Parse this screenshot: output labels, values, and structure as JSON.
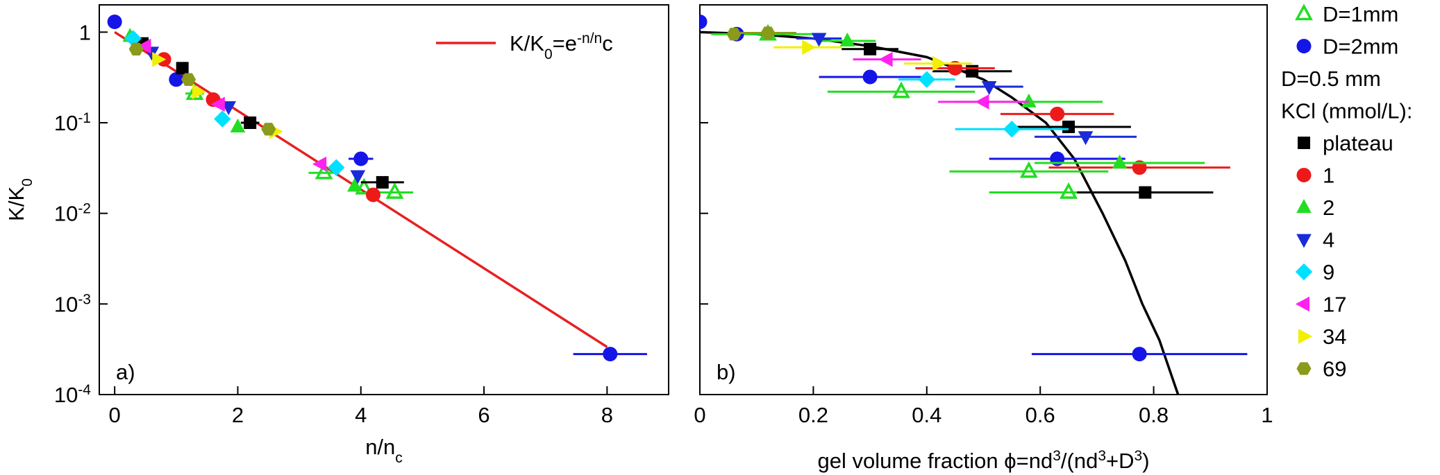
{
  "chart_data": [
    {
      "type": "scatter",
      "panel_label": "a)",
      "ylog": true,
      "xlabel": [
        "n/n",
        "c"
      ],
      "ylabel": [
        "K/K",
        "0"
      ],
      "xlim": [
        -0.25,
        9
      ],
      "xticks": [
        0,
        2,
        4,
        6,
        8
      ],
      "ylim": [
        0.0001,
        2
      ],
      "yticks": [
        {
          "value": 0.0001,
          "label": [
            "10",
            "-4"
          ]
        },
        {
          "value": 0.001,
          "label": [
            "10",
            "-3"
          ]
        },
        {
          "value": 0.01,
          "label": [
            "10",
            "-2"
          ]
        },
        {
          "value": 0.1,
          "label": [
            "10",
            "-1"
          ]
        },
        1
      ],
      "fit": {
        "label": [
          "K/K",
          "0",
          "=e",
          "-n/n",
          "c"
        ],
        "color": "#e82020",
        "x": [
          0,
          8
        ],
        "values": [
          1,
          0.000335
        ]
      },
      "series": [
        {
          "color": "#22dd22",
          "marker": "triangle-up",
          "open": true,
          "x": [
            3.4,
            4.55,
            1.3,
            4.05
          ],
          "values": [
            0.028,
            0.017,
            0.21,
            0.019
          ],
          "xerr": [
            0.25,
            0.3,
            0.15,
            null
          ]
        },
        {
          "color": "#1515e8",
          "marker": "circle",
          "x": [
            0,
            1,
            4,
            8.05
          ],
          "values": [
            1.3,
            0.3,
            0.04,
            0.00028
          ],
          "xerr": [
            null,
            null,
            0.2,
            0.6
          ]
        },
        {
          "color": "#000000",
          "marker": "square",
          "x": [
            1.1,
            2.2,
            4.35,
            0.45
          ],
          "values": [
            0.4,
            0.1,
            0.022,
            0.75
          ],
          "xerr": [
            null,
            0.15,
            0.35,
            null
          ]
        },
        {
          "color": "#ee1a1a",
          "marker": "circle",
          "x": [
            4.2,
            1.6,
            0.8
          ],
          "values": [
            0.016,
            0.18,
            0.5
          ],
          "xerr": [
            null,
            null,
            null
          ]
        },
        {
          "color": "#22dd22",
          "marker": "triangle-up",
          "x": [
            3.9,
            2.0,
            0.25
          ],
          "values": [
            0.02,
            0.09,
            0.9
          ],
          "xerr": [
            null,
            null,
            null
          ]
        },
        {
          "color": "#1a2bd8",
          "marker": "triangle-down",
          "x": [
            3.95,
            1.85,
            0.6
          ],
          "values": [
            0.026,
            0.15,
            0.6
          ],
          "xerr": [
            null,
            null,
            null
          ]
        },
        {
          "color": "#00e0ff",
          "marker": "diamond",
          "x": [
            3.6,
            1.75,
            0.3
          ],
          "values": [
            0.032,
            0.11,
            0.85
          ],
          "xerr": [
            null,
            null,
            null
          ]
        },
        {
          "color": "#ff22ee",
          "marker": "triangle-left",
          "x": [
            3.35,
            1.7,
            0.5
          ],
          "values": [
            0.035,
            0.16,
            0.7
          ],
          "xerr": [
            null,
            null,
            null
          ]
        },
        {
          "color": "#f0f000",
          "marker": "triangle-right",
          "x": [
            2.6,
            1.35,
            0.7
          ],
          "values": [
            0.08,
            0.22,
            0.5
          ],
          "xerr": [
            null,
            null,
            null
          ]
        },
        {
          "color": "#8a9a1a",
          "marker": "hexagon",
          "x": [
            2.5,
            1.2,
            0.35
          ],
          "values": [
            0.085,
            0.3,
            0.65
          ],
          "xerr": [
            null,
            null,
            null
          ]
        }
      ]
    },
    {
      "type": "scatter",
      "panel_label": "b)",
      "ylog": true,
      "xlabel": [
        "gel volume fraction ϕ=nd",
        "3",
        "/(nd",
        "3",
        "+D",
        "3",
        ")"
      ],
      "xlim": [
        0,
        1
      ],
      "xticks": [
        0,
        0.2,
        0.4,
        0.6,
        0.8,
        1
      ],
      "ylim": [
        0.0001,
        2
      ],
      "yticks": [
        0.0001,
        0.001,
        0.01,
        0.1,
        1
      ],
      "curve": {
        "color": "#000000",
        "x": [
          0,
          0.1,
          0.2,
          0.3,
          0.4,
          0.5,
          0.55,
          0.61,
          0.66,
          0.71,
          0.75,
          0.78,
          0.81,
          0.843
        ],
        "values": [
          1,
          0.95,
          0.85,
          0.7,
          0.53,
          0.3,
          0.19,
          0.1,
          0.04,
          0.01,
          0.003,
          0.001,
          0.0004,
          0.0001
        ]
      },
      "legend_headings": [
        "D=0.5 mm",
        "KCl (mmol/L):"
      ],
      "series": [
        {
          "name": "D=1mm",
          "color": "#22dd22",
          "marker": "triangle-up",
          "open": true,
          "x": [
            0.355,
            0.58,
            0.65,
            0.12
          ],
          "values": [
            0.22,
            0.029,
            0.017,
            0.95
          ],
          "xerr": [
            0.13,
            0.14,
            0.14,
            0.1
          ]
        },
        {
          "name": "D=2mm",
          "color": "#1515e8",
          "marker": "circle",
          "x": [
            0,
            0.3,
            0.63,
            0.775,
            0.065
          ],
          "values": [
            1.3,
            0.32,
            0.04,
            0.00028,
            0.95
          ],
          "xerr": [
            null,
            0.09,
            0.12,
            0.19,
            null
          ]
        },
        {
          "name": "plateau",
          "color": "#000000",
          "marker": "square",
          "x": [
            0.48,
            0.65,
            0.785,
            0.3
          ],
          "values": [
            0.37,
            0.09,
            0.017,
            0.65
          ],
          "xerr": [
            0.07,
            0.11,
            0.12,
            0.05
          ]
        },
        {
          "name": "1",
          "color": "#ee1a1a",
          "marker": "circle",
          "x": [
            0.63,
            0.775,
            0.45
          ],
          "values": [
            0.125,
            0.032,
            0.4
          ],
          "xerr": [
            0.1,
            0.16,
            0.07
          ]
        },
        {
          "name": "2",
          "color": "#22dd22",
          "marker": "triangle-up",
          "x": [
            0.58,
            0.74,
            0.26
          ],
          "values": [
            0.17,
            0.036,
            0.8
          ],
          "xerr": [
            0.13,
            0.15,
            0.05
          ]
        },
        {
          "name": "4",
          "color": "#1a2bd8",
          "marker": "triangle-down",
          "x": [
            0.51,
            0.68,
            0.21
          ],
          "values": [
            0.25,
            0.07,
            0.85
          ],
          "xerr": [
            0.06,
            0.09,
            0.04
          ]
        },
        {
          "name": "9",
          "color": "#00e0ff",
          "marker": "diamond",
          "x": [
            0.55,
            0.4
          ],
          "values": [
            0.085,
            0.3
          ],
          "xerr": [
            0.1,
            0.05
          ]
        },
        {
          "name": "17",
          "color": "#ff22ee",
          "marker": "triangle-left",
          "x": [
            0.5,
            0.33
          ],
          "values": [
            0.17,
            0.5
          ],
          "xerr": [
            0.08,
            0.06
          ]
        },
        {
          "name": "34",
          "color": "#f0f000",
          "marker": "triangle-right",
          "x": [
            0.42,
            0.19
          ],
          "values": [
            0.45,
            0.68
          ],
          "xerr": [
            0.06,
            0.06
          ]
        },
        {
          "name": "69",
          "color": "#8a9a1a",
          "marker": "hexagon",
          "x": [
            0.12,
            0.06
          ],
          "values": [
            0.98,
            0.95
          ],
          "xerr": [
            0.05,
            null
          ]
        }
      ]
    }
  ]
}
